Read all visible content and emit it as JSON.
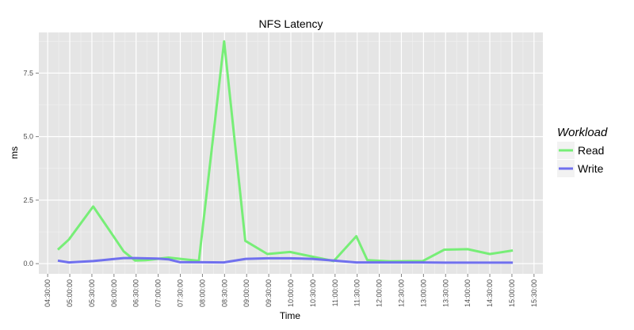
{
  "chart_data": {
    "type": "line",
    "title": "NFS Latency",
    "xlabel": "Time",
    "ylabel": "ms",
    "x_tick_labels": [
      "04:30:00",
      "05:00:00",
      "05:30:00",
      "06:00:00",
      "06:30:00",
      "07:00:00",
      "07:30:00",
      "08:00:00",
      "08:30:00",
      "09:00:00",
      "09:30:00",
      "10:00:00",
      "10:30:00",
      "11:00:00",
      "11:30:00",
      "12:00:00",
      "12:30:00",
      "13:00:00",
      "13:30:00",
      "14:00:00",
      "14:30:00",
      "15:00:00",
      "15:30:00"
    ],
    "x_tick_values": [
      4.5,
      5,
      5.5,
      6,
      6.5,
      7,
      7.5,
      8,
      8.5,
      9,
      9.5,
      10,
      10.5,
      11,
      11.5,
      12,
      12.5,
      13,
      13.5,
      14,
      14.5,
      15,
      15.5
    ],
    "y_ticks": [
      0.0,
      2.5,
      5.0,
      7.5
    ],
    "y_tick_labels": [
      "0.0",
      "2.5",
      "5.0",
      "7.5"
    ],
    "xlim": [
      4.3,
      15.7
    ],
    "ylim": [
      -0.4,
      9.1
    ],
    "grid": true,
    "legend": {
      "title": "Workload",
      "position": "right"
    },
    "series": [
      {
        "name": "Read",
        "color": "#77ee77",
        "x": [
          4.73,
          4.98,
          5.53,
          5.98,
          6.22,
          6.48,
          6.73,
          7.23,
          7.92,
          8.49,
          8.97,
          9.47,
          9.98,
          10.48,
          10.97,
          11.48,
          11.73,
          12.23,
          12.98,
          13.47,
          14.0,
          14.5,
          15.02
        ],
        "y": [
          0.55,
          0.95,
          2.25,
          1.1,
          0.48,
          0.12,
          0.14,
          0.24,
          0.11,
          8.75,
          0.9,
          0.38,
          0.46,
          0.28,
          0.1,
          1.08,
          0.14,
          0.09,
          0.1,
          0.55,
          0.57,
          0.38,
          0.52
        ]
      },
      {
        "name": "Write",
        "color": "#7070ee",
        "x": [
          4.73,
          4.98,
          5.53,
          5.98,
          6.22,
          6.48,
          6.98,
          7.23,
          7.48,
          8.48,
          8.98,
          9.47,
          9.98,
          10.48,
          10.97,
          11.48,
          11.98,
          12.48,
          12.98,
          13.47,
          14.0,
          14.5,
          15.02
        ],
        "y": [
          0.12,
          0.05,
          0.1,
          0.18,
          0.22,
          0.22,
          0.2,
          0.17,
          0.06,
          0.05,
          0.19,
          0.21,
          0.21,
          0.19,
          0.12,
          0.05,
          0.05,
          0.05,
          0.05,
          0.04,
          0.04,
          0.04,
          0.04
        ]
      }
    ]
  }
}
